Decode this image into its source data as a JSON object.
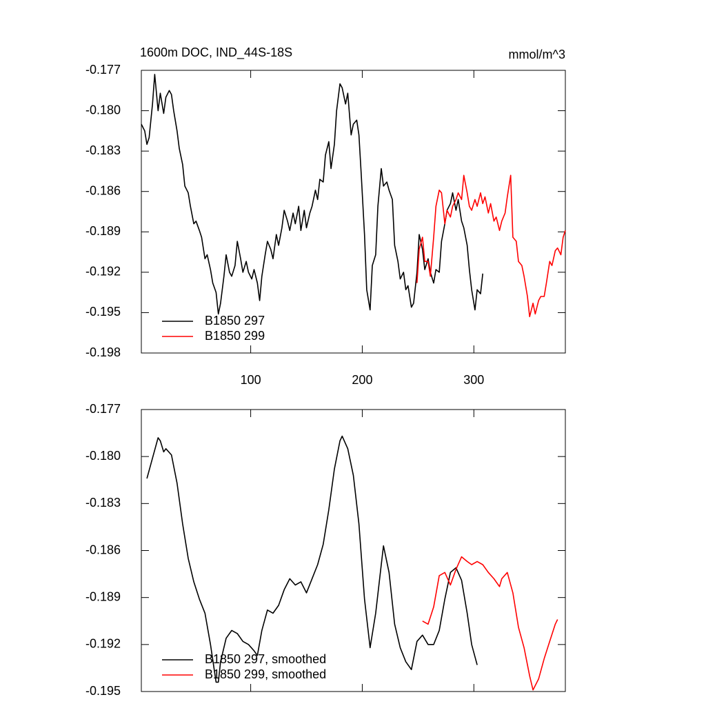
{
  "chart_data": [
    {
      "type": "line",
      "title": "1600m DOC, IND_44S-18S",
      "units": "mmol/m^3",
      "legend": "lower left",
      "xlim": [
        2,
        382
      ],
      "xticks": [
        100,
        200,
        300
      ],
      "ylim": [
        -0.198,
        -0.177
      ],
      "yticks": [
        -0.177,
        {
          "value": -0.18,
          "label": "-0.180"
        },
        -0.183,
        -0.186,
        -0.189,
        -0.192,
        -0.195,
        -0.198
      ],
      "series": [
        {
          "name": "B1850 297",
          "color": "#000000",
          "x": [
            2,
            5,
            7,
            9,
            12,
            14,
            17,
            19,
            22,
            24,
            27,
            29,
            31,
            34,
            36,
            39,
            41,
            44,
            46,
            49,
            51,
            54,
            56,
            59,
            61,
            64,
            66,
            69,
            71,
            73,
            76,
            78,
            81,
            83,
            86,
            88,
            91,
            93,
            96,
            98,
            101,
            103,
            106,
            108,
            110,
            113,
            115,
            118,
            120,
            123,
            125,
            128,
            130,
            133,
            135,
            138,
            140,
            143,
            145,
            148,
            150,
            153,
            155,
            158,
            160,
            162,
            165,
            167,
            170,
            172,
            175,
            177,
            180,
            182,
            185,
            187,
            190,
            192,
            195,
            197,
            199,
            202,
            204,
            207,
            209,
            212,
            214,
            217,
            219,
            222,
            224,
            227,
            229,
            232,
            234,
            237,
            239,
            241,
            244,
            246,
            249,
            251,
            254,
            256,
            259,
            261,
            264,
            266,
            269,
            271,
            274,
            276,
            279,
            281,
            284,
            286,
            289,
            291,
            294,
            296,
            298,
            301,
            303,
            306,
            308
          ],
          "values": [
            -0.181,
            -0.1815,
            -0.1825,
            -0.182,
            -0.1795,
            -0.1773,
            -0.18,
            -0.1787,
            -0.1802,
            -0.179,
            -0.1785,
            -0.1788,
            -0.18,
            -0.1815,
            -0.1828,
            -0.184,
            -0.1856,
            -0.1861,
            -0.1871,
            -0.1884,
            -0.1882,
            -0.1889,
            -0.1894,
            -0.191,
            -0.1907,
            -0.1918,
            -0.1928,
            -0.1935,
            -0.1951,
            -0.1943,
            -0.1923,
            -0.1907,
            -0.192,
            -0.1923,
            -0.1915,
            -0.1897,
            -0.191,
            -0.192,
            -0.1912,
            -0.192,
            -0.1925,
            -0.1918,
            -0.1928,
            -0.1941,
            -0.1923,
            -0.1907,
            -0.1897,
            -0.1903,
            -0.191,
            -0.1892,
            -0.19,
            -0.1887,
            -0.1874,
            -0.1882,
            -0.1889,
            -0.1876,
            -0.1884,
            -0.1871,
            -0.1889,
            -0.1874,
            -0.1887,
            -0.1876,
            -0.1871,
            -0.1859,
            -0.1866,
            -0.1851,
            -0.1853,
            -0.1833,
            -0.1823,
            -0.1843,
            -0.1825,
            -0.18,
            -0.178,
            -0.1783,
            -0.1795,
            -0.1787,
            -0.1818,
            -0.181,
            -0.1807,
            -0.1818,
            -0.1846,
            -0.1892,
            -0.1933,
            -0.1948,
            -0.1915,
            -0.1907,
            -0.1871,
            -0.1843,
            -0.1856,
            -0.1853,
            -0.1859,
            -0.1866,
            -0.19,
            -0.1912,
            -0.1925,
            -0.192,
            -0.1933,
            -0.193,
            -0.1946,
            -0.1943,
            -0.192,
            -0.1892,
            -0.1903,
            -0.1918,
            -0.191,
            -0.192,
            -0.1928,
            -0.1918,
            -0.192,
            -0.1897,
            -0.1884,
            -0.1874,
            -0.1869,
            -0.1861,
            -0.1874,
            -0.1866,
            -0.1882,
            -0.1887,
            -0.19,
            -0.1918,
            -0.1933,
            -0.1948,
            -0.1933,
            -0.1936,
            -0.1921
          ]
        },
        {
          "name": "B1850 299",
          "color": "#ff0000",
          "x": [
            249,
            251,
            254,
            256,
            259,
            261,
            264,
            266,
            269,
            271,
            274,
            276,
            279,
            281,
            284,
            286,
            289,
            291,
            294,
            296,
            298,
            301,
            303,
            306,
            308,
            310,
            313,
            315,
            318,
            320,
            323,
            325,
            328,
            330,
            333,
            335,
            338,
            340,
            343,
            345,
            348,
            350,
            353,
            355,
            358,
            360,
            363,
            365,
            368,
            370,
            373,
            375,
            378,
            380,
            382
          ],
          "values": [
            -0.1928,
            -0.1903,
            -0.1894,
            -0.1912,
            -0.1912,
            -0.1923,
            -0.1894,
            -0.1871,
            -0.1859,
            -0.1861,
            -0.1884,
            -0.1874,
            -0.1879,
            -0.1871,
            -0.1866,
            -0.1861,
            -0.1866,
            -0.1848,
            -0.1861,
            -0.1871,
            -0.1874,
            -0.1866,
            -0.1871,
            -0.1861,
            -0.1869,
            -0.1864,
            -0.1876,
            -0.1869,
            -0.1882,
            -0.1879,
            -0.1889,
            -0.1882,
            -0.1876,
            -0.1864,
            -0.1848,
            -0.1894,
            -0.1897,
            -0.1912,
            -0.1915,
            -0.1923,
            -0.1938,
            -0.1953,
            -0.1943,
            -0.1951,
            -0.1941,
            -0.1938,
            -0.1938,
            -0.1928,
            -0.1912,
            -0.1915,
            -0.1904,
            -0.1902,
            -0.1907,
            -0.1894,
            -0.1889
          ]
        }
      ]
    },
    {
      "type": "line",
      "legend": "lower left",
      "xlim": [
        2,
        382
      ],
      "xticks": [
        100,
        200,
        300
      ],
      "ylim": [
        -0.195,
        -0.177
      ],
      "yticks": [
        -0.177,
        {
          "value": -0.18,
          "label": "-0.180"
        },
        -0.183,
        -0.186,
        -0.189,
        -0.192,
        -0.195
      ],
      "series": [
        {
          "name": "B1850 297, smoothed",
          "color": "#000000",
          "x": [
            7,
            12,
            17,
            19,
            22,
            24,
            29,
            34,
            39,
            44,
            49,
            54,
            59,
            64,
            69,
            71,
            73,
            78,
            83,
            88,
            93,
            98,
            103,
            106,
            110,
            115,
            120,
            125,
            130,
            135,
            140,
            145,
            150,
            155,
            160,
            165,
            170,
            175,
            180,
            182,
            187,
            192,
            197,
            202,
            207,
            212,
            217,
            219,
            224,
            229,
            234,
            239,
            244,
            249,
            254,
            259,
            264,
            269,
            274,
            279,
            284,
            289,
            294,
            298,
            303
          ],
          "values": [
            -0.1814,
            -0.1801,
            -0.1788,
            -0.179,
            -0.1797,
            -0.1795,
            -0.1799,
            -0.1817,
            -0.1843,
            -0.1865,
            -0.188,
            -0.1891,
            -0.19,
            -0.192,
            -0.1944,
            -0.1944,
            -0.1931,
            -0.1916,
            -0.1911,
            -0.1913,
            -0.1918,
            -0.192,
            -0.1924,
            -0.1927,
            -0.1911,
            -0.1898,
            -0.19,
            -0.1895,
            -0.1885,
            -0.1878,
            -0.1882,
            -0.188,
            -0.1887,
            -0.1878,
            -0.1869,
            -0.1856,
            -0.1834,
            -0.1808,
            -0.179,
            -0.1787,
            -0.1795,
            -0.1812,
            -0.1843,
            -0.1891,
            -0.1922,
            -0.19,
            -0.1869,
            -0.1857,
            -0.1874,
            -0.1907,
            -0.1922,
            -0.1931,
            -0.1936,
            -0.1918,
            -0.1914,
            -0.192,
            -0.192,
            -0.1911,
            -0.1891,
            -0.1874,
            -0.1871,
            -0.1879,
            -0.19,
            -0.192,
            -0.1933
          ]
        },
        {
          "name": "B1850 299, smoothed",
          "color": "#ff0000",
          "x": [
            254,
            259,
            264,
            269,
            274,
            279,
            284,
            289,
            294,
            298,
            303,
            308,
            313,
            318,
            323,
            325,
            330,
            335,
            340,
            345,
            350,
            353,
            358,
            363,
            368,
            373,
            375
          ],
          "values": [
            -0.1905,
            -0.1907,
            -0.1896,
            -0.1876,
            -0.1874,
            -0.1882,
            -0.1872,
            -0.1864,
            -0.1867,
            -0.1869,
            -0.1867,
            -0.1869,
            -0.1874,
            -0.1878,
            -0.1883,
            -0.1878,
            -0.1874,
            -0.1887,
            -0.1909,
            -0.1922,
            -0.194,
            -0.1949,
            -0.1942,
            -0.1929,
            -0.1918,
            -0.1907,
            -0.1904
          ]
        }
      ]
    }
  ]
}
